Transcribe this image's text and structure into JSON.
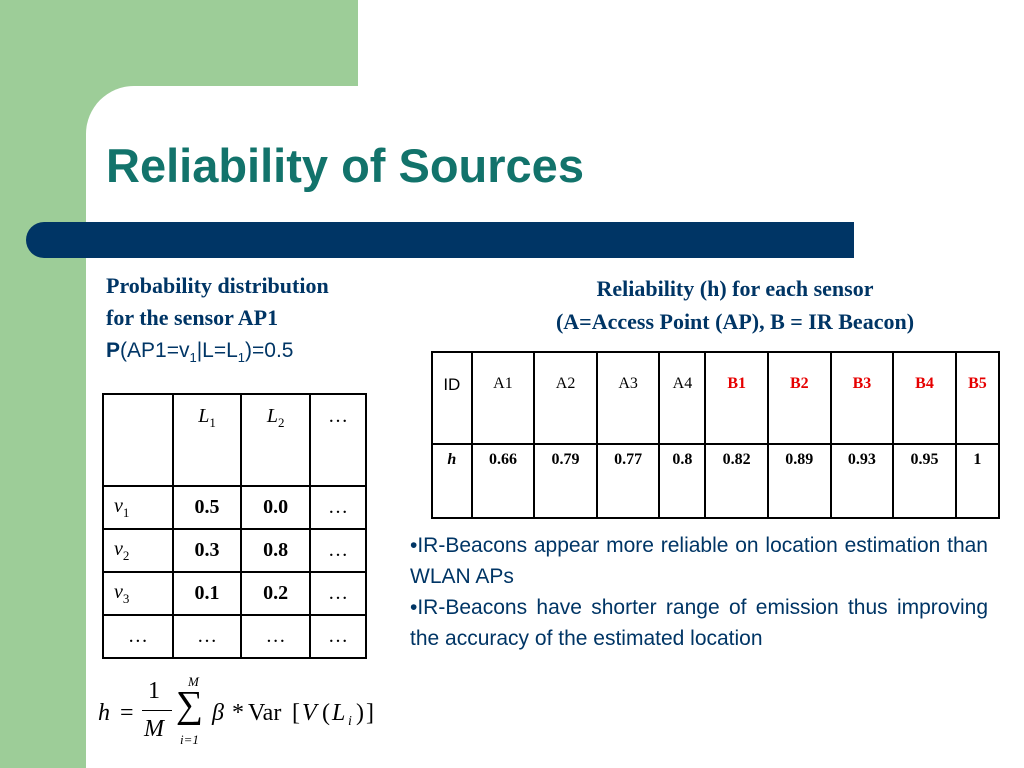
{
  "title": "Reliability of Sources",
  "left_caption": {
    "line1": "Probability distribution",
    "line2": "for the sensor AP1",
    "formula": {
      "p": "P",
      "open": "(AP1=v",
      "sub1": "1",
      "mid": "|L=L",
      "sub2": "1",
      "close": ")=0.5"
    }
  },
  "right_caption": {
    "line1": "Reliability (h) for each sensor",
    "line2": "(A=Access Point (AP), B = IR Beacon)"
  },
  "prob_table": {
    "headers": [
      {
        "var": "L",
        "sub": "1"
      },
      {
        "var": "L",
        "sub": "2"
      },
      {
        "text": "…"
      }
    ],
    "rows": [
      {
        "var": "v",
        "sub": "1",
        "values": [
          "0.5",
          "0.0",
          "…"
        ]
      },
      {
        "var": "v",
        "sub": "2",
        "values": [
          "0.3",
          "0.8",
          "…"
        ]
      },
      {
        "var": "v",
        "sub": "3",
        "values": [
          "0.1",
          "0.2",
          "…"
        ]
      },
      {
        "label": "…",
        "values": [
          "…",
          "…",
          "…"
        ]
      }
    ]
  },
  "reliability_table": {
    "id_label": "ID",
    "h_label": "h",
    "ids": [
      "A1",
      "A2",
      "A3",
      "A4",
      "B1",
      "B2",
      "B3",
      "B4",
      "B5"
    ],
    "values": [
      "0.66",
      "0.79",
      "0.77",
      "0.8",
      "0.82",
      "0.89",
      "0.93",
      "0.95",
      "1"
    ],
    "beacon_color": "#e60000"
  },
  "bullets": [
    "•IR-Beacons appear more reliable on location estimation than WLAN APs",
    "•IR-Beacons have shorter range of emission thus improving the accuracy of the estimated location"
  ],
  "equation": {
    "lhs": "h",
    "eq": "=",
    "num": "1",
    "den": "M",
    "sum": "∑",
    "upper": "M",
    "lower": "i=1",
    "beta": "β",
    "star": "*",
    "var": "Var",
    "lb": "[",
    "V": "V",
    "lp": "(",
    "L": "L",
    "i": "i",
    "rp": ")",
    "rb": "]"
  },
  "colors": {
    "green_block": "#9dcd98",
    "title": "#12736b",
    "bar": "#003565",
    "text": "#003565"
  }
}
